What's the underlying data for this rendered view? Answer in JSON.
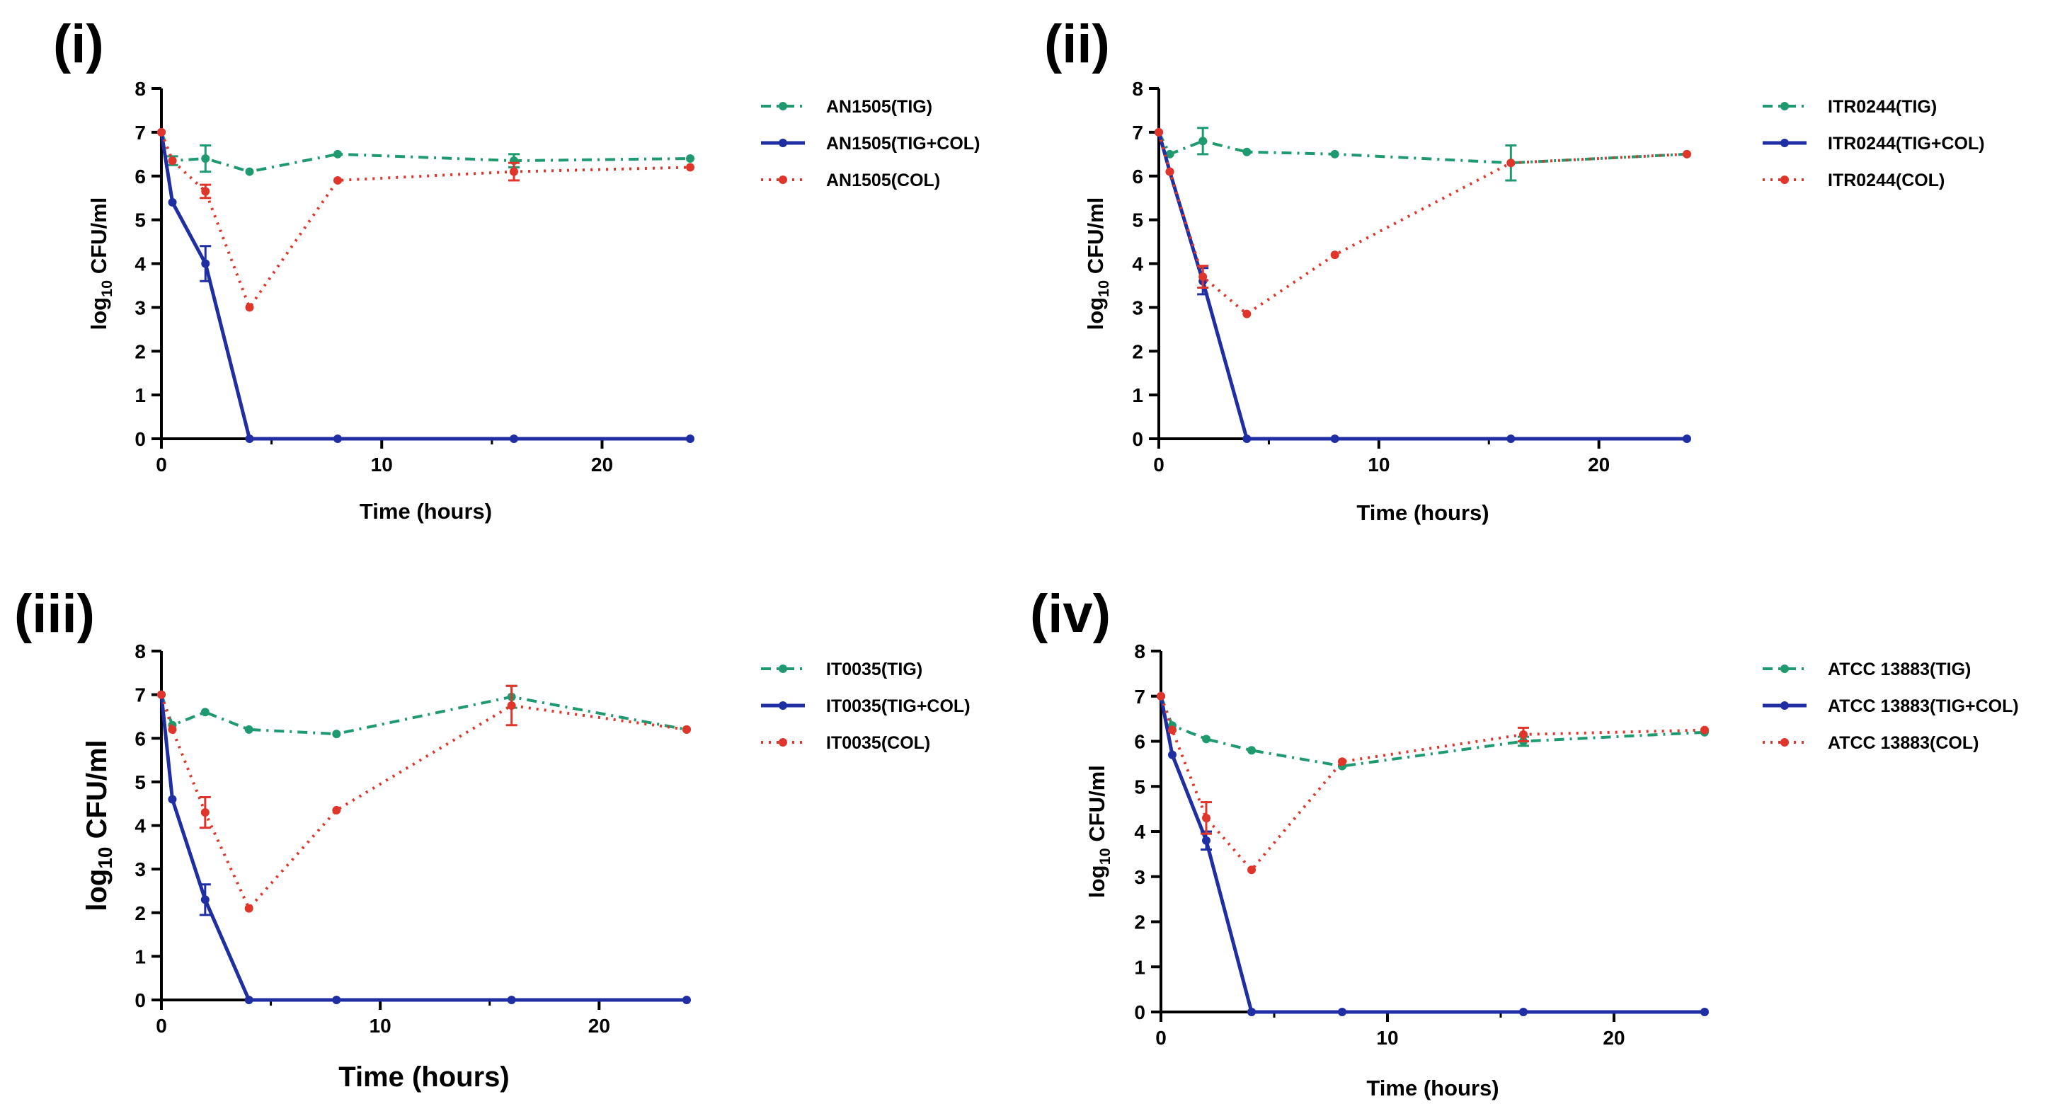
{
  "series_styles": [
    {
      "key": "tig",
      "color": "#1e9a6e",
      "dash": "dashdot"
    },
    {
      "key": "tigcol",
      "color": "#1f2fa3",
      "dash": "solid"
    },
    {
      "key": "col",
      "color": "#e0352b",
      "dash": "dotted"
    }
  ],
  "chart_data": [
    {
      "panel": "(i)",
      "type": "line",
      "xlabel": "Time (hours)",
      "ylabel_main": "log",
      "ylabel_sub": "10",
      "ylabel_rest": " CFU/ml",
      "xlim": [
        0,
        24
      ],
      "ylim": [
        0,
        8
      ],
      "xticks": [
        0,
        10,
        20
      ],
      "yticks": [
        0,
        1,
        2,
        3,
        4,
        5,
        6,
        7,
        8
      ],
      "x": [
        0,
        0.5,
        2,
        4,
        8,
        16,
        24
      ],
      "series": [
        {
          "name": "AN1505(TIG)",
          "values": [
            7.0,
            6.35,
            6.4,
            6.1,
            6.5,
            6.35,
            6.4
          ],
          "errors": [
            0,
            0.1,
            0.3,
            0.05,
            0.05,
            0.15,
            0.05
          ]
        },
        {
          "name": "AN1505(TIG+COL)",
          "values": [
            7.0,
            5.4,
            4.0,
            0,
            0,
            0,
            0
          ],
          "errors": [
            0,
            0.05,
            0.4,
            0,
            0,
            0,
            0
          ]
        },
        {
          "name": "AN1505(COL)",
          "values": [
            7.0,
            6.35,
            5.65,
            3.0,
            5.9,
            6.1,
            6.2
          ],
          "errors": [
            0,
            0.05,
            0.15,
            0.05,
            0.05,
            0.2,
            0.05
          ]
        }
      ]
    },
    {
      "panel": "(ii)",
      "type": "line",
      "xlabel": "Time (hours)",
      "ylabel_main": "log",
      "ylabel_sub": "10",
      "ylabel_rest": " CFU/ml",
      "xlim": [
        0,
        24
      ],
      "ylim": [
        0,
        8
      ],
      "xticks": [
        0,
        10,
        20
      ],
      "yticks": [
        0,
        1,
        2,
        3,
        4,
        5,
        6,
        7,
        8
      ],
      "x": [
        0,
        0.5,
        2,
        4,
        8,
        16,
        24
      ],
      "series": [
        {
          "name": "ITR0244(TIG)",
          "values": [
            7.0,
            6.5,
            6.8,
            6.55,
            6.5,
            6.3,
            6.5
          ],
          "errors": [
            0,
            0.05,
            0.3,
            0.05,
            0.05,
            0.4,
            0.05
          ]
        },
        {
          "name": "ITR0244(TIG+COL)",
          "values": [
            7.0,
            6.1,
            3.6,
            0,
            0,
            0,
            0
          ],
          "errors": [
            0,
            0.05,
            0.3,
            0,
            0,
            0,
            0
          ]
        },
        {
          "name": "ITR0244(COL)",
          "values": [
            7.0,
            6.1,
            3.7,
            2.85,
            4.2,
            6.3,
            6.5
          ],
          "errors": [
            0,
            0.05,
            0.25,
            0.05,
            0.05,
            0.05,
            0.05
          ]
        }
      ]
    },
    {
      "panel": "(iii)",
      "type": "line",
      "xlabel": "Time  (hours)",
      "ylabel_main": "log",
      "ylabel_sub": "10",
      "ylabel_rest": " CFU/ml",
      "xlim": [
        0,
        24
      ],
      "ylim": [
        0,
        8
      ],
      "xticks": [
        0,
        10,
        20
      ],
      "yticks": [
        0,
        1,
        2,
        3,
        4,
        5,
        6,
        7,
        8
      ],
      "x": [
        0,
        0.5,
        2,
        4,
        8,
        16,
        24
      ],
      "series": [
        {
          "name": "IT0035(TIG)",
          "values": [
            7.0,
            6.3,
            6.6,
            6.2,
            6.1,
            6.95,
            6.2
          ],
          "errors": [
            0,
            0.05,
            0.05,
            0.05,
            0.05,
            0.25,
            0.05
          ]
        },
        {
          "name": "IT0035(TIG+COL)",
          "values": [
            7.0,
            4.6,
            2.3,
            0,
            0,
            0,
            0
          ],
          "errors": [
            0,
            0.05,
            0.35,
            0,
            0,
            0,
            0
          ]
        },
        {
          "name": "IT0035(COL)",
          "values": [
            7.0,
            6.2,
            4.3,
            2.1,
            4.35,
            6.75,
            6.2
          ],
          "errors": [
            0,
            0.05,
            0.35,
            0.05,
            0.05,
            0.45,
            0.05
          ]
        }
      ]
    },
    {
      "panel": "(iv)",
      "type": "line",
      "xlabel": "Time (hours)",
      "ylabel_main": "log",
      "ylabel_sub": "10",
      "ylabel_rest": " CFU/ml",
      "xlim": [
        0,
        24
      ],
      "ylim": [
        0,
        8
      ],
      "xticks": [
        0,
        10,
        20
      ],
      "yticks": [
        0,
        1,
        2,
        3,
        4,
        5,
        6,
        7,
        8
      ],
      "x": [
        0,
        0.5,
        2,
        4,
        8,
        16,
        24
      ],
      "series": [
        {
          "name": "ATCC 13883(TIG)",
          "values": [
            7.0,
            6.35,
            6.05,
            5.8,
            5.45,
            6.0,
            6.2
          ],
          "errors": [
            0,
            0.05,
            0.05,
            0.05,
            0.05,
            0.1,
            0.05
          ]
        },
        {
          "name": "ATCC 13883(TIG+COL)",
          "values": [
            7.0,
            5.7,
            3.8,
            0,
            0,
            0,
            0
          ],
          "errors": [
            0,
            0.05,
            0.2,
            0,
            0,
            0,
            0
          ]
        },
        {
          "name": "ATCC 13883(COL)",
          "values": [
            7.0,
            6.25,
            4.3,
            3.15,
            5.55,
            6.15,
            6.25
          ],
          "errors": [
            0,
            0.05,
            0.35,
            0.05,
            0.05,
            0.15,
            0.05
          ]
        }
      ]
    }
  ]
}
